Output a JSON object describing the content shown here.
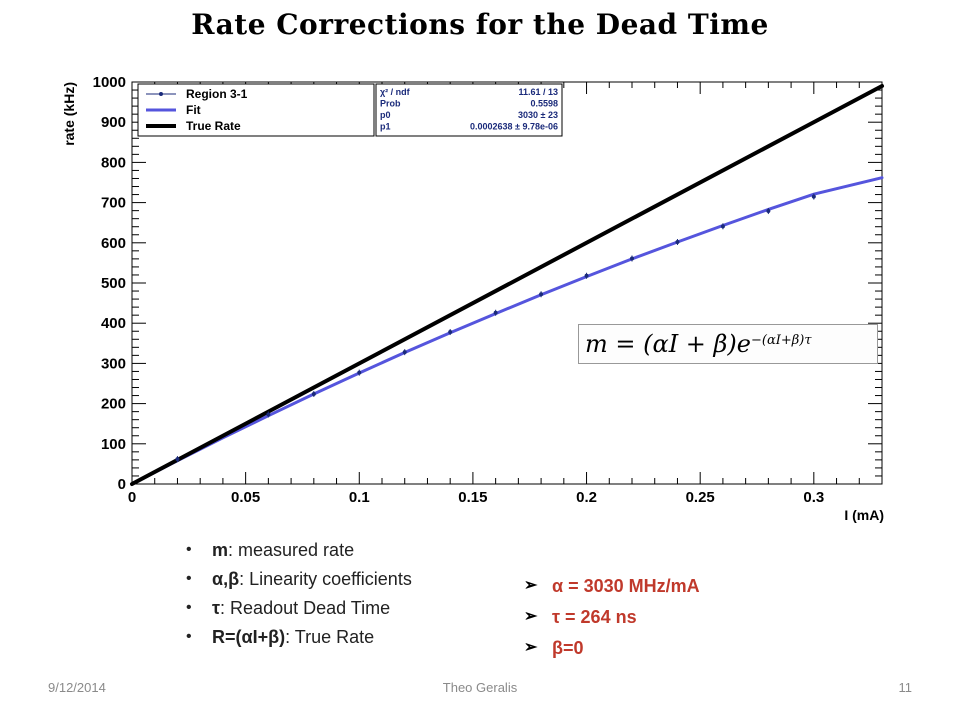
{
  "slide": {
    "title": "Rate Corrections for the Dead Time",
    "footer": {
      "date": "9/12/2014",
      "author": "Theo Geralis",
      "page": "11"
    }
  },
  "chart_data": {
    "type": "scatter",
    "xlabel": "I (mA)",
    "ylabel": "rate (kHz)",
    "xlim": [
      0,
      0.33
    ],
    "ylim": [
      0,
      1000
    ],
    "x_ticks": [
      0,
      0.05,
      0.1,
      0.15,
      0.2,
      0.25,
      0.3
    ],
    "x_tick_labels": [
      "0",
      "0.05",
      "0.1",
      "0.15",
      "0.2",
      "0.25",
      "0.3"
    ],
    "y_ticks": [
      0,
      100,
      200,
      300,
      400,
      500,
      600,
      700,
      800,
      900,
      1000
    ],
    "y_tick_labels": [
      "0",
      "100",
      "200",
      "300",
      "400",
      "500",
      "600",
      "700",
      "800",
      "900",
      "1000"
    ],
    "grid": false,
    "legend_position": "top-left",
    "legend": [
      {
        "label": "Region 3-1",
        "style": "points",
        "color": "#1a2a7a"
      },
      {
        "label": "Fit",
        "style": "line",
        "color": "#5555dd"
      },
      {
        "label": "True Rate",
        "style": "line",
        "color": "#000000"
      }
    ],
    "series": [
      {
        "name": "Region 3-1",
        "type": "scatter",
        "color": "#1a2a7a",
        "x": [
          0.02,
          0.06,
          0.08,
          0.1,
          0.12,
          0.14,
          0.16,
          0.18,
          0.2,
          0.22,
          0.24,
          0.26,
          0.28,
          0.3
        ],
        "y": [
          62,
          173,
          224,
          277,
          328,
          378,
          426,
          472,
          518,
          561,
          602,
          641,
          679,
          715
        ]
      },
      {
        "name": "Fit",
        "type": "line",
        "color": "#5555dd",
        "x": [
          0.0,
          0.02,
          0.04,
          0.06,
          0.08,
          0.1,
          0.12,
          0.14,
          0.16,
          0.18,
          0.2,
          0.22,
          0.24,
          0.26,
          0.28,
          0.3,
          0.33
        ],
        "y": [
          0,
          58,
          115,
          170,
          224,
          276,
          327,
          376,
          424,
          471,
          516,
          560,
          602,
          643,
          683,
          721,
          762
        ]
      },
      {
        "name": "True Rate",
        "type": "line",
        "color": "#000000",
        "x": [
          0.0,
          0.33
        ],
        "y": [
          0,
          990
        ]
      }
    ],
    "stats_box": {
      "rows": [
        {
          "label": "χ² / ndf",
          "value": "11.61 / 13"
        },
        {
          "label": "Prob",
          "value": "0.5598"
        },
        {
          "label": "p0",
          "value": "3030 ± 23"
        },
        {
          "label": "p1",
          "value": "0.0002638 ± 9.78e-06"
        }
      ]
    },
    "formula": {
      "lhs": "m = (αI + β)e",
      "exponent": "−(αI+β)τ"
    }
  },
  "bullets": [
    {
      "term": "m",
      "text": ": measured rate"
    },
    {
      "term": "α,β",
      "text": ": Linearity coefficients"
    },
    {
      "term": "τ",
      "text": ": Readout Dead Time"
    },
    {
      "term": "R=(αI+β)",
      "text": ": True Rate"
    }
  ],
  "params": [
    "α = 3030 MHz/mA",
    "τ = 264 ns",
    "β=0"
  ],
  "icons": {
    "bullet": "bullet-dot-icon",
    "arrow": "arrow-right-icon"
  }
}
